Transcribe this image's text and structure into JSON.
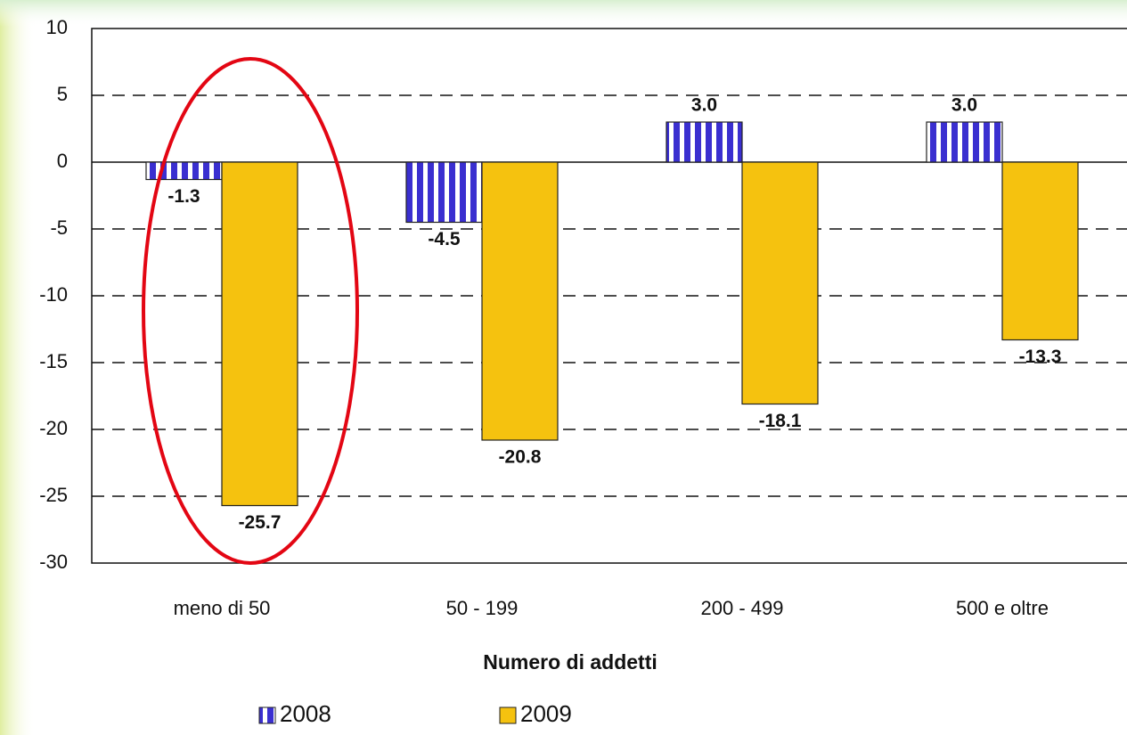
{
  "chart_data": {
    "type": "bar",
    "x_label": "Numero di addetti",
    "categories": [
      "meno di 50",
      "50 - 199",
      "200 - 499",
      "500 e oltre"
    ],
    "series": [
      {
        "name": "2008",
        "color": "#3a2fd0",
        "values": [
          -1.3,
          -4.5,
          3.0,
          3.0
        ],
        "value_labels": [
          "-1.3",
          "-4.5",
          "3.0",
          "3.0"
        ]
      },
      {
        "name": "2009",
        "color": "#f5c20f",
        "values": [
          -25.7,
          -20.8,
          -18.1,
          -13.3
        ],
        "value_labels": [
          "-25.7",
          "-20.8",
          "-18.1",
          "-13.3"
        ]
      }
    ],
    "ylim": [
      -30,
      10
    ],
    "yticks": [
      -30,
      -25,
      -20,
      -15,
      -10,
      -5,
      0,
      5,
      10
    ],
    "grid": true,
    "legend": "bottom"
  }
}
